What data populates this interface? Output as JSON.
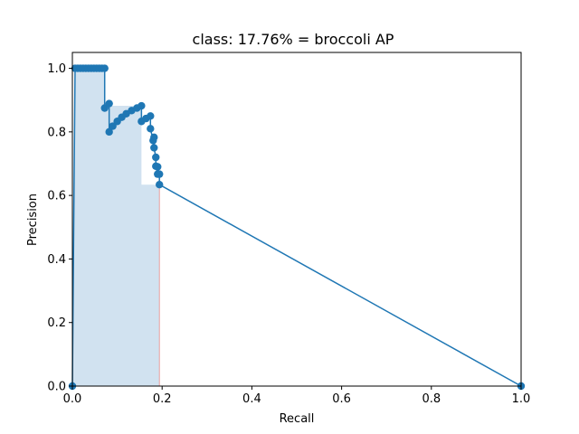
{
  "chart_data": {
    "type": "line",
    "title": "class: 17.76% = broccoli AP",
    "xlabel": "Recall",
    "ylabel": "Precision",
    "xlim": [
      0,
      1.0
    ],
    "ylim": [
      0,
      1.05
    ],
    "xticks": [
      0.0,
      0.2,
      0.4,
      0.6,
      0.8,
      1.0
    ],
    "xtick_labels": [
      "0.0",
      "0.2",
      "0.4",
      "0.6",
      "0.8",
      "1.0"
    ],
    "yticks": [
      0.0,
      0.2,
      0.4,
      0.6,
      0.8,
      1.0
    ],
    "ytick_labels": [
      "0.0",
      "0.2",
      "0.4",
      "0.6",
      "0.8",
      "1.0"
    ],
    "grid": false,
    "colors": {
      "line": "#1f77b4",
      "fill": "#b9d3e8",
      "edge": "#e8a0a0"
    },
    "series": [
      {
        "x": [
          0.0,
          0.006,
          0.012,
          0.018,
          0.024,
          0.03,
          0.036,
          0.042,
          0.048,
          0.054,
          0.06,
          0.066,
          0.072,
          0.072,
          0.082,
          0.082,
          0.09,
          0.1,
          0.11,
          0.12,
          0.132,
          0.144,
          0.154,
          0.154,
          0.164,
          0.174,
          0.174,
          0.18,
          0.182,
          0.182,
          0.186,
          0.186,
          0.19,
          0.19,
          0.194,
          0.194,
          1.0
        ],
        "y": [
          0.0,
          1.0,
          1.0,
          1.0,
          1.0,
          1.0,
          1.0,
          1.0,
          1.0,
          1.0,
          1.0,
          1.0,
          1.0,
          0.875,
          0.889,
          0.8,
          0.818,
          0.833,
          0.846,
          0.857,
          0.867,
          0.875,
          0.882,
          0.833,
          0.842,
          0.85,
          0.81,
          0.773,
          0.783,
          0.75,
          0.72,
          0.692,
          0.667,
          0.69,
          0.667,
          0.634,
          0.0
        ]
      }
    ],
    "filled_region": {
      "x": [
        0.0,
        0.006,
        0.072,
        0.072,
        0.154,
        0.154,
        0.194,
        0.194,
        0.0
      ],
      "y": [
        0.0,
        1.0,
        1.0,
        0.882,
        0.882,
        0.634,
        0.634,
        0.0,
        0.0
      ]
    }
  }
}
